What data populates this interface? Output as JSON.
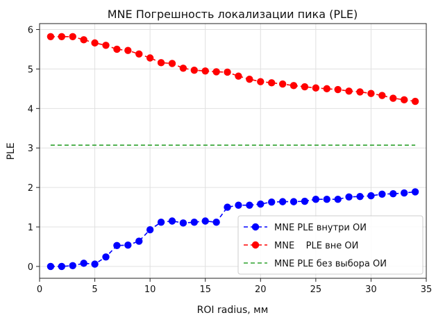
{
  "chart_data": {
    "type": "line",
    "title": "MNE Погрешность локализации пика (PLE)",
    "xlabel": "ROI radius, мм",
    "ylabel": "PLE",
    "xlim": [
      0,
      35
    ],
    "ylim": [
      -0.3,
      6.15
    ],
    "xticks": [
      0,
      5,
      10,
      15,
      20,
      25,
      30,
      35
    ],
    "yticks": [
      0,
      1,
      2,
      3,
      4,
      5,
      6
    ],
    "grid": true,
    "legend_position": "lower-right",
    "series": [
      {
        "name": "MNE PLE внутри ОИ",
        "color": "#0000ff",
        "style": "dashed-markers",
        "x": [
          1,
          2,
          3,
          4,
          5,
          6,
          7,
          8,
          9,
          10,
          11,
          12,
          13,
          14,
          15,
          16,
          17,
          18,
          19,
          20,
          21,
          22,
          23,
          24,
          25,
          26,
          27,
          28,
          29,
          30,
          31,
          32,
          33,
          34
        ],
        "y": [
          0.0,
          0.0,
          0.02,
          0.08,
          0.06,
          0.24,
          0.53,
          0.54,
          0.64,
          0.93,
          1.12,
          1.15,
          1.1,
          1.12,
          1.15,
          1.12,
          1.5,
          1.55,
          1.55,
          1.58,
          1.63,
          1.64,
          1.64,
          1.65,
          1.7,
          1.7,
          1.7,
          1.76,
          1.77,
          1.79,
          1.83,
          1.84,
          1.86,
          1.89
        ]
      },
      {
        "name": "MNE    PLE вне ОИ",
        "color": "#ff0000",
        "style": "dashed-markers",
        "x": [
          1,
          2,
          3,
          4,
          5,
          6,
          7,
          8,
          9,
          10,
          11,
          12,
          13,
          14,
          15,
          16,
          17,
          18,
          19,
          20,
          21,
          22,
          23,
          24,
          25,
          26,
          27,
          28,
          29,
          30,
          31,
          32,
          33,
          34
        ],
        "y": [
          5.82,
          5.82,
          5.82,
          5.74,
          5.66,
          5.6,
          5.5,
          5.47,
          5.38,
          5.28,
          5.16,
          5.14,
          5.02,
          4.97,
          4.95,
          4.93,
          4.92,
          4.82,
          4.74,
          4.68,
          4.65,
          4.62,
          4.58,
          4.55,
          4.52,
          4.5,
          4.48,
          4.44,
          4.42,
          4.38,
          4.33,
          4.26,
          4.22,
          4.18
        ]
      },
      {
        "name": "MNE PLE без выбора ОИ",
        "color": "#2ca02c",
        "style": "dashed",
        "x": [
          1,
          34
        ],
        "y": [
          3.07,
          3.07
        ]
      }
    ]
  }
}
